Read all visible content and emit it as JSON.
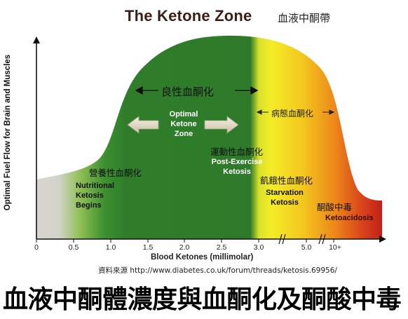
{
  "title": "The Ketone Zone",
  "title_zh": "血液中酮帶",
  "y_axis_label": "Optimal Fuel Flow for Brain and Muscles",
  "x_axis_label": "Blood Ketones (millimolar)",
  "x_ticks": [
    "0",
    "0.5",
    "1.0",
    "1.5",
    "2.0",
    "2.5",
    "3.0",
    "5.0",
    "10+"
  ],
  "zones": {
    "benign_zh": "良性血酮化",
    "pathological_zh": "病態血酮化",
    "optimal": [
      "Optimal",
      "Ketone",
      "Zone"
    ],
    "nutritional_zh": "營養性血酮化",
    "nutritional": [
      "Nutritional",
      "Ketosis",
      "Begins"
    ],
    "post_exercise_zh": "運動性血酮化",
    "post_exercise": [
      "Post-Exercise",
      "Ketosis"
    ],
    "starvation_zh": "飢餓性血酮化",
    "starvation": [
      "Starvation",
      "Ketosis"
    ],
    "ketoacidosis_zh": "酮酸中毒",
    "ketoacidosis": "Ketoacidosis"
  },
  "source": "資料來源 http://www.diabetes.co.uk/forum/threads/ketosis.69956/",
  "banner": "血液中酮體濃度與血酮化及酮酸中毒",
  "colors": {
    "grey": "#d6d1cf",
    "green": "#2e7d32",
    "yellow": "#f2ec2a",
    "orange": "#f08a18",
    "red": "#c0241a"
  }
}
